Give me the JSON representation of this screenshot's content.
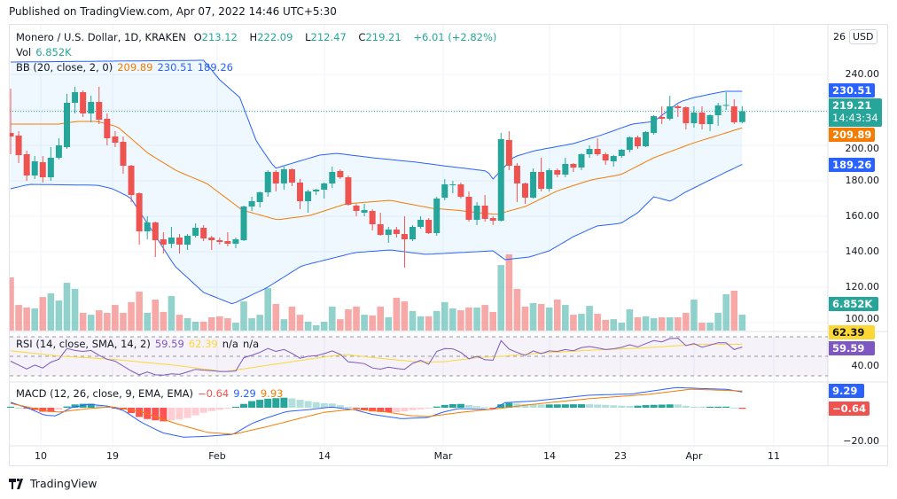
{
  "published": "Published on TradingView.com, Apr 07, 2022 14:46 UTC+5:30",
  "legend": {
    "symbol": "Monero / U.S. Dollar, 1D, KRAKEN",
    "o_label": "O",
    "o": "213.12",
    "h_label": "H",
    "h": "222.09",
    "l_label": "L",
    "l": "212.47",
    "c_label": "C",
    "c": "219.21",
    "change": "+6.01 (+2.82%)",
    "vol_label": "Vol",
    "vol": "6.852K",
    "bb_label": "BB (20, close, 2, 0)",
    "bb_basis": "209.89",
    "bb_upper": "230.51",
    "bb_lower": "189.26",
    "rsi_label": "RSI (14, close, SMA, 14, 2)",
    "rsi": "59.59",
    "rsi_sma": "62.39",
    "rsi_na1": "n/a",
    "rsi_na2": "n/a",
    "macd_label": "MACD (12, 26, close, 9, EMA, EMA)",
    "macd_hist": "−0.64",
    "macd": "9.29",
    "macd_signal": "9.93"
  },
  "axis": {
    "currency": "USD",
    "price_top_partial": "26",
    "price_ticks": [
      "240.00",
      "200.00",
      "180.00",
      "160.00",
      "140.00",
      "120.00",
      "100.00"
    ],
    "rsi_tick": "40.00",
    "macd_tick": "−20.00",
    "tags": {
      "bb_upper": "230.51",
      "last_price": "219.21",
      "countdown": "14:43:34",
      "bb_basis": "209.89",
      "bb_lower": "189.26",
      "volume": "6.852K",
      "rsi_sma": "62.39",
      "rsi": "59.59",
      "macd": "9.29",
      "macd_hist": "−0.64"
    },
    "time_labels": [
      "10",
      "19",
      "Feb",
      "14",
      "Mar",
      "14",
      "23",
      "Apr",
      "11"
    ]
  },
  "footer": {
    "brand": "TradingView"
  },
  "colors": {
    "up": "#26a69a",
    "down": "#ef5350",
    "bb_band": "#2962ff",
    "bb_basis": "#f57c00",
    "rsi": "#7e57c2",
    "rsi_sma": "#fdd835",
    "macd": "#2962ff",
    "signal": "#f57c00"
  },
  "chart_data": {
    "type": "candlestick",
    "symbol": "XMR/USD",
    "interval": "1D",
    "first_date": "2022-01-06",
    "last_date": "2022-04-07",
    "price_range": [
      95,
      262
    ],
    "ohlc": [
      [
        207,
        232,
        195,
        205
      ],
      [
        205.5,
        208,
        190,
        194.5
      ],
      [
        195,
        197,
        180,
        183
      ],
      [
        183,
        194,
        181,
        191
      ],
      [
        190.5,
        194,
        179,
        182
      ],
      [
        182,
        199,
        180,
        193
      ],
      [
        193,
        204,
        192,
        200
      ],
      [
        199,
        229,
        198,
        224
      ],
      [
        224,
        233,
        218,
        230
      ],
      [
        230,
        231,
        216,
        218
      ],
      [
        218,
        228,
        213,
        224.5
      ],
      [
        224.5,
        233,
        212,
        214.5
      ],
      [
        215,
        218,
        200,
        204
      ],
      [
        205,
        208,
        199,
        201.5
      ],
      [
        202,
        205,
        184,
        188.5
      ],
      [
        188.5,
        189,
        168,
        172
      ],
      [
        173,
        173.5,
        144,
        151.5
      ],
      [
        151.5,
        160,
        147,
        156.5
      ],
      [
        156.5,
        157,
        137,
        146.5
      ],
      [
        147,
        151,
        139,
        144
      ],
      [
        144.5,
        154,
        142,
        148
      ],
      [
        148,
        150,
        139,
        144
      ],
      [
        144,
        150,
        141,
        149
      ],
      [
        149,
        156,
        148,
        153.5
      ],
      [
        153.5,
        155,
        146,
        147.5
      ],
      [
        148,
        149,
        141,
        146.5
      ],
      [
        146.5,
        148,
        144,
        145.5
      ],
      [
        146,
        151,
        143,
        144.5
      ],
      [
        144.5,
        148,
        142,
        147
      ],
      [
        146.5,
        166,
        146,
        165.5
      ],
      [
        165.5,
        171,
        163,
        168.5
      ],
      [
        168,
        174,
        165,
        173.5
      ],
      [
        173.5,
        186,
        171,
        185
      ],
      [
        185,
        186,
        174,
        178.5
      ],
      [
        178.5,
        188,
        175,
        186.5
      ],
      [
        186.5,
        187,
        177,
        179
      ],
      [
        179,
        181,
        164,
        168.5
      ],
      [
        168.5,
        175,
        162,
        174
      ],
      [
        174,
        175.5,
        172,
        175
      ],
      [
        175,
        179,
        170,
        178.5
      ],
      [
        178.5,
        188,
        176,
        185
      ],
      [
        185.5,
        186.5,
        181,
        182
      ],
      [
        182,
        183,
        166,
        166.5
      ],
      [
        166,
        167,
        160,
        163
      ],
      [
        162,
        167,
        160,
        163.5
      ],
      [
        163,
        164,
        152,
        155.5
      ],
      [
        155.5,
        162,
        149,
        149.5
      ],
      [
        149.5,
        154,
        145,
        152.5
      ],
      [
        152.5,
        154,
        148,
        150
      ],
      [
        150,
        160,
        131,
        147
      ],
      [
        147,
        155,
        146,
        154
      ],
      [
        154,
        160,
        153,
        158
      ],
      [
        158,
        159,
        150,
        150.5
      ],
      [
        150.5,
        171,
        149,
        170
      ],
      [
        170.5,
        181,
        169,
        178
      ],
      [
        177.5,
        180,
        173,
        178
      ],
      [
        178,
        179,
        170,
        171
      ],
      [
        171,
        174,
        157,
        158
      ],
      [
        158,
        168,
        155,
        166
      ],
      [
        166,
        172,
        157,
        158.5
      ],
      [
        159,
        160,
        155,
        157.5
      ],
      [
        157.5,
        207,
        157,
        203.5
      ],
      [
        203,
        208,
        186,
        188.5
      ],
      [
        188.5,
        190,
        168,
        178.5
      ],
      [
        178.5,
        179,
        167,
        170.5
      ],
      [
        170.5,
        187,
        170,
        185
      ],
      [
        185,
        193,
        174,
        175.5
      ],
      [
        175.5,
        187,
        174,
        186
      ],
      [
        186,
        187,
        182,
        183.5
      ],
      [
        183.5,
        193,
        182,
        189.5
      ],
      [
        189.5,
        190,
        185,
        187.5
      ],
      [
        187.5,
        195.5,
        186,
        195
      ],
      [
        195,
        200,
        193,
        198
      ],
      [
        198,
        204,
        194,
        195
      ],
      [
        195,
        196,
        189,
        191.5
      ],
      [
        191,
        194.5,
        188,
        194
      ],
      [
        194,
        198,
        193,
        197.5
      ],
      [
        197.5,
        205,
        196,
        204.5
      ],
      [
        204.5,
        205.5,
        198,
        199.5
      ],
      [
        199.5,
        208,
        199,
        207.5
      ],
      [
        207,
        217,
        206,
        216.5
      ],
      [
        216,
        222,
        212,
        215
      ],
      [
        215,
        228,
        214,
        222
      ],
      [
        222,
        223,
        216,
        221
      ],
      [
        221.5,
        222,
        209,
        212.5
      ],
      [
        212.5,
        222,
        210,
        218.5
      ],
      [
        218.5,
        222,
        209,
        212
      ],
      [
        212,
        217.5,
        208,
        217
      ],
      [
        217,
        224,
        211,
        222.5
      ],
      [
        222.5,
        230,
        220,
        222.8
      ],
      [
        222,
        226,
        212,
        213
      ],
      [
        213.12,
        222.09,
        212.47,
        219.21
      ]
    ],
    "volume_k": [
      22.8,
      11.0,
      9.9,
      9.5,
      14.4,
      16.0,
      12.9,
      20.5,
      17.9,
      7.6,
      6.8,
      8.7,
      7.6,
      11.0,
      7.6,
      12.2,
      16.7,
      7.6,
      13.3,
      8.0,
      14.8,
      6.8,
      5.3,
      3.8,
      3.8,
      5.7,
      6.1,
      5.3,
      3.4,
      12.5,
      5.3,
      6.8,
      18.2,
      11.4,
      4.9,
      10.3,
      6.8,
      3.8,
      2.3,
      3.8,
      10.3,
      4.9,
      9.1,
      10.3,
      6.8,
      6.5,
      10.3,
      5.7,
      14.1,
      12.5,
      8.4,
      6.1,
      6.1,
      8.4,
      12.2,
      9.5,
      8.7,
      9.9,
      9.9,
      11.0,
      8.0,
      28.1,
      32.7,
      17.9,
      10.3,
      11.8,
      11.4,
      9.9,
      13.3,
      11.0,
      6.8,
      7.2,
      10.6,
      7.2,
      4.6,
      4.9,
      3.4,
      9.1,
      5.7,
      6.1,
      5.3,
      5.7,
      5.7,
      5.7,
      7.6,
      13.3,
      3.4,
      3.4,
      7.6,
      15.6,
      17.1,
      6.852
    ],
    "bb_upper": [
      [
        0,
        247
      ],
      [
        24,
        248
      ],
      [
        26,
        237
      ],
      [
        28.5,
        227
      ],
      [
        30.6,
        202
      ],
      [
        32.9,
        187
      ],
      [
        38.4,
        194.5
      ],
      [
        40.6,
        195.5
      ],
      [
        45,
        193
      ],
      [
        50.5,
        190.5
      ],
      [
        53.8,
        188.5
      ],
      [
        59.3,
        185.5
      ],
      [
        60,
        181
      ],
      [
        62.6,
        193.5
      ],
      [
        65.2,
        197
      ],
      [
        70,
        201
      ],
      [
        73.6,
        206
      ],
      [
        77.3,
        212
      ],
      [
        80,
        213.5
      ],
      [
        83.2,
        224.5
      ],
      [
        85,
        227
      ],
      [
        88.8,
        230.5
      ],
      [
        91,
        230.51
      ]
    ],
    "bb_basis": [
      [
        0,
        212
      ],
      [
        6,
        212
      ],
      [
        8.3,
        213.5
      ],
      [
        10.8,
        213.5
      ],
      [
        13.3,
        210.5
      ],
      [
        17.1,
        195.5
      ],
      [
        20.7,
        185.5
      ],
      [
        24.4,
        178.5
      ],
      [
        28.8,
        163.5
      ],
      [
        33.2,
        158
      ],
      [
        37.3,
        160.5
      ],
      [
        41.7,
        167
      ],
      [
        47.2,
        169
      ],
      [
        52.4,
        164.5
      ],
      [
        55.2,
        163.5
      ],
      [
        60.4,
        161
      ],
      [
        64,
        165.5
      ],
      [
        68.1,
        174.5
      ],
      [
        72.2,
        180.5
      ],
      [
        75.9,
        183.5
      ],
      [
        80,
        193
      ],
      [
        84.7,
        201
      ],
      [
        91,
        209.89
      ]
    ],
    "bb_lower": [
      [
        0,
        175.5
      ],
      [
        2.3,
        178
      ],
      [
        10.8,
        177.5
      ],
      [
        12.7,
        175.5
      ],
      [
        14.9,
        170.5
      ],
      [
        17.8,
        150.5
      ],
      [
        20.4,
        132
      ],
      [
        24,
        117
      ],
      [
        27.6,
        110.5
      ],
      [
        31.8,
        119.5
      ],
      [
        36.2,
        132
      ],
      [
        42.8,
        139.5
      ],
      [
        47.2,
        141
      ],
      [
        51.6,
        138.5
      ],
      [
        60,
        140.5
      ],
      [
        61.5,
        135.5
      ],
      [
        64.5,
        137
      ],
      [
        67,
        140.5
      ],
      [
        70,
        148.5
      ],
      [
        72.9,
        154.5
      ],
      [
        75.9,
        156
      ],
      [
        78,
        162
      ],
      [
        80,
        171
      ],
      [
        82.1,
        168.5
      ],
      [
        83.9,
        173.5
      ],
      [
        86.1,
        178.5
      ],
      [
        88.8,
        184.5
      ],
      [
        91,
        189.26
      ]
    ],
    "rsi": [
      45,
      41,
      37,
      41,
      38,
      44,
      47,
      58,
      56,
      55,
      56,
      51,
      47,
      45,
      40,
      35,
      31,
      34,
      31,
      30.6,
      32,
      31.5,
      34,
      36.6,
      35.8,
      35.4,
      34.5,
      34.5,
      35,
      48.5,
      51,
      54,
      58,
      55,
      57,
      53,
      48,
      50,
      50.6,
      52.7,
      55.5,
      52,
      44.3,
      43.5,
      42.5,
      38,
      36.8,
      38.8,
      37.5,
      36.6,
      42.7,
      45.8,
      41.8,
      55,
      57.9,
      57.6,
      54,
      47.5,
      50,
      46.5,
      46,
      66.1,
      57.5,
      53.9,
      50.9,
      55.5,
      52.7,
      55.5,
      55,
      56.9,
      55.7,
      59,
      60,
      58.6,
      56.9,
      57.7,
      59.2,
      61.8,
      59.6,
      63,
      66.1,
      64.8,
      68.2,
      68.5,
      60.9,
      63,
      59.4,
      61.5,
      63.9,
      63.8,
      56.9,
      59.59
    ],
    "rsi_sma": [
      [
        0,
        55.7
      ],
      [
        6,
        50.3
      ],
      [
        13,
        46.7
      ],
      [
        20.7,
        40.6
      ],
      [
        26.6,
        34.2
      ],
      [
        31.8,
        40.6
      ],
      [
        39.8,
        50.3
      ],
      [
        41.7,
        51.8
      ],
      [
        46,
        47.9
      ],
      [
        50.5,
        44.3
      ],
      [
        53.8,
        44.3
      ],
      [
        58.2,
        48.8
      ],
      [
        61.5,
        50.3
      ],
      [
        65.9,
        53.3
      ],
      [
        72.5,
        56.4
      ],
      [
        79.2,
        58.8
      ],
      [
        85.8,
        62.4
      ],
      [
        91,
        62.39
      ]
    ],
    "rsi_levels": [
      70,
      50,
      30
    ],
    "macd": [
      [
        0,
        3.2
      ],
      [
        2.3,
        -0.5
      ],
      [
        4.2,
        -4.4
      ],
      [
        5.6,
        -4.9
      ],
      [
        7.5,
        0
      ],
      [
        9.7,
        2.1
      ],
      [
        12.2,
        0.9
      ],
      [
        14.1,
        -1.8
      ],
      [
        16.3,
        -8.8
      ],
      [
        18.9,
        -14.9
      ],
      [
        21.5,
        -17.5
      ],
      [
        24.4,
        -17
      ],
      [
        27.7,
        -15.8
      ],
      [
        29.9,
        -9.6
      ],
      [
        31.8,
        -6.1
      ],
      [
        34.3,
        -2.3
      ],
      [
        36.9,
        -1.2
      ],
      [
        39.8,
        0.4
      ],
      [
        42.8,
        -1.2
      ],
      [
        45,
        -4
      ],
      [
        46.9,
        -5.3
      ],
      [
        48.6,
        -6.5
      ],
      [
        51.9,
        -5.8
      ],
      [
        53.8,
        -2.6
      ],
      [
        55.7,
        -0.5
      ],
      [
        58.5,
        -0.9
      ],
      [
        59.9,
        -1.2
      ],
      [
        61.5,
        3
      ],
      [
        65.2,
        4
      ],
      [
        71.8,
        7.4
      ],
      [
        77.3,
        8.2
      ],
      [
        79.9,
        10
      ],
      [
        82.8,
        12
      ],
      [
        85.8,
        11.4
      ],
      [
        89.1,
        10.9
      ],
      [
        91,
        9.29
      ]
    ],
    "signal": [
      [
        0,
        2.6
      ],
      [
        4.2,
        -1.8
      ],
      [
        6,
        -2.6
      ],
      [
        9.7,
        -0.5
      ],
      [
        12.7,
        0.5
      ],
      [
        16.3,
        -2.6
      ],
      [
        20.7,
        -9.6
      ],
      [
        24.4,
        -14.6
      ],
      [
        27.7,
        -15.8
      ],
      [
        31.8,
        -11.4
      ],
      [
        35.4,
        -7
      ],
      [
        39.1,
        -2.6
      ],
      [
        42.8,
        -0.9
      ],
      [
        46.4,
        -2.3
      ],
      [
        49.7,
        -4.7
      ],
      [
        51.9,
        -5.3
      ],
      [
        56.3,
        -2.6
      ],
      [
        60.7,
        -0.5
      ],
      [
        64.5,
        1.8
      ],
      [
        71.8,
        5.3
      ],
      [
        79.2,
        7.9
      ],
      [
        84.7,
        11
      ],
      [
        91,
        9.93
      ]
    ]
  }
}
